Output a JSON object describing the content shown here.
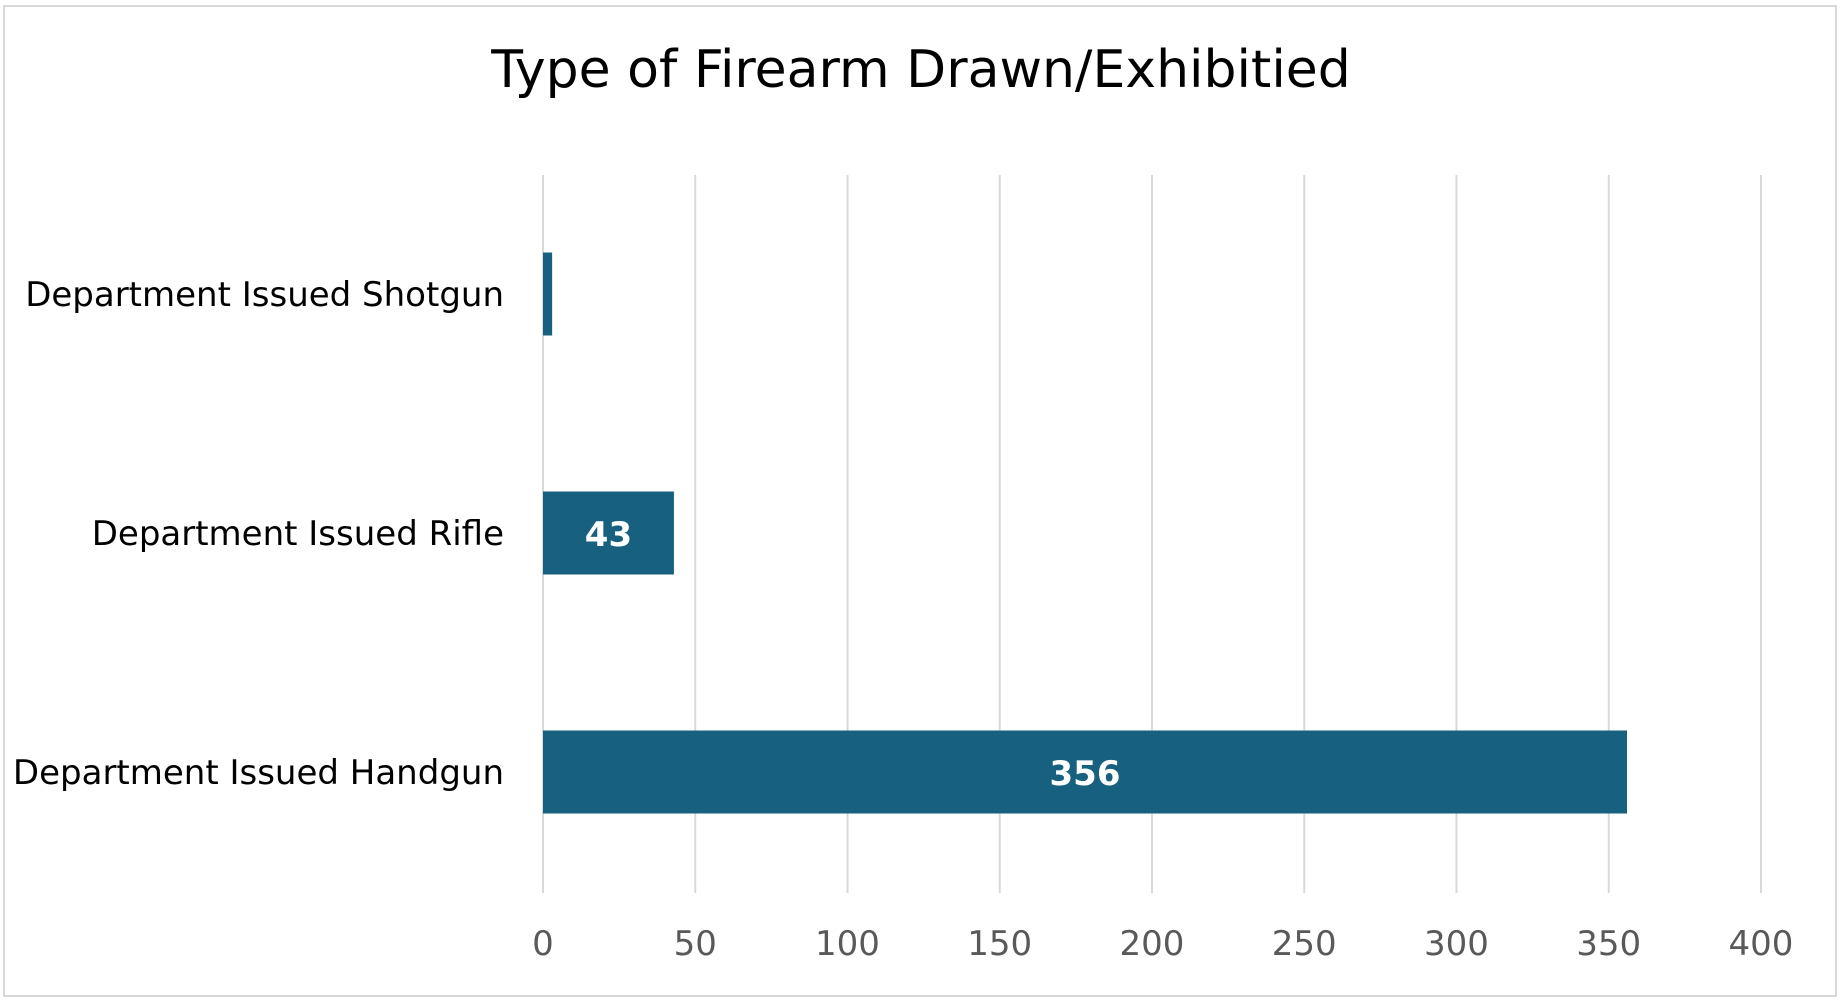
{
  "chart_data": {
    "type": "bar",
    "orientation": "horizontal",
    "title": "Type of Firearm Drawn/Exhibitied",
    "categories": [
      "Department Issued Shotgun",
      "Department Issued Rifle",
      "Department Issued Handgun"
    ],
    "values": [
      3,
      43,
      356
    ],
    "data_labels": [
      "",
      "43",
      "356"
    ],
    "xlim": [
      0,
      400
    ],
    "x_ticks": [
      0,
      50,
      100,
      150,
      200,
      250,
      300,
      350,
      400
    ],
    "xlabel": "",
    "ylabel": "",
    "grid": "vertical",
    "legend": "none",
    "colors": {
      "bar": "#17607f",
      "grid": "#d9d9d9",
      "frame": "#d9d9d9"
    }
  }
}
